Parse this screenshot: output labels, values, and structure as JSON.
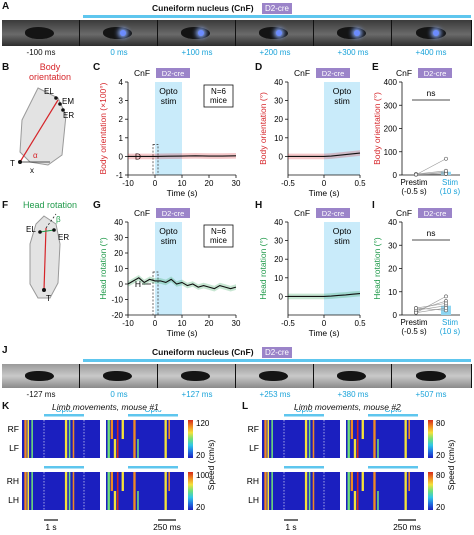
{
  "panels": {
    "A": "A",
    "B": "B",
    "C": "C",
    "D": "D",
    "E": "E",
    "F": "F",
    "G": "G",
    "H": "H",
    "I": "I",
    "J": "J",
    "K": "K",
    "L": "L"
  },
  "header": {
    "region": "Cuneiform nucleus (CnF)",
    "badge": "D2-cre"
  },
  "strip_a": {
    "labels": [
      "-100 ms",
      "0 ms",
      "+100 ms",
      "+200 ms",
      "+300 ms",
      "+400 ms"
    ]
  },
  "strip_j": {
    "labels": [
      "-127 ms",
      "0 ms",
      "+127 ms",
      "+253 ms",
      "+380 ms",
      "+507 ms"
    ]
  },
  "schematic_b": {
    "title": "Body orientation",
    "labels": [
      "EL",
      "EM",
      "ER",
      "T",
      "α",
      "x"
    ]
  },
  "schematic_f": {
    "title": "Head rotation",
    "labels": [
      "EL",
      "ER",
      "T",
      "β"
    ]
  },
  "common": {
    "cnf": "CnF",
    "badge": "D2-cre",
    "opto": "Opto",
    "stim": "stim",
    "n_mice_1": "N=6",
    "n_mice_2": "mice",
    "time": "Time (s)",
    "ns": "ns",
    "prestim": "Prestim",
    "prestim_sub": "(-0.5 s)",
    "stim_label": "Stim",
    "stim_sub": "(10 s)"
  },
  "chart_data": [
    {
      "id": "C",
      "type": "line",
      "ylabel": "Body orientation (×100°)",
      "xlabel": "Time (s)",
      "xlim": [
        -10,
        30
      ],
      "ylim": [
        -1,
        4
      ],
      "xticks": [
        -10,
        0,
        10,
        20,
        30
      ],
      "yticks": [
        -1,
        0,
        1,
        2,
        3,
        4
      ],
      "opto_window": [
        0,
        10
      ],
      "x": [
        -10,
        -5,
        0,
        5,
        10,
        15,
        20,
        25,
        30
      ],
      "y": [
        0,
        0,
        0,
        0.01,
        0.02,
        0.03,
        0.02,
        0.02,
        0.03
      ],
      "annotation": "D"
    },
    {
      "id": "D",
      "type": "line",
      "ylabel": "Body orientation (°)",
      "xlabel": "Time (s)",
      "xlim": [
        -0.5,
        0.5
      ],
      "ylim": [
        -10,
        40
      ],
      "xticks": [
        -0.5,
        0,
        0.5
      ],
      "yticks": [
        0,
        10,
        20,
        30,
        40
      ],
      "opto_window": [
        0,
        0.5
      ],
      "x": [
        -0.5,
        -0.25,
        0,
        0.1,
        0.2,
        0.3,
        0.4,
        0.5
      ],
      "y": [
        0,
        0,
        0,
        0.2,
        0.6,
        1.0,
        1.4,
        1.8
      ]
    },
    {
      "id": "E",
      "type": "scatter",
      "ylabel": "Body orientation (°)",
      "ylim": [
        0,
        400
      ],
      "yticks": [
        0,
        100,
        200,
        300,
        400
      ],
      "categories": [
        "Prestim (-0.5 s)",
        "Stim (10 s)"
      ],
      "series": [
        {
          "values": [
            3,
            14
          ]
        }
      ],
      "points": [
        [
          2,
          5
        ],
        [
          1,
          70
        ],
        [
          3,
          4
        ],
        [
          2,
          12
        ],
        [
          4,
          18
        ],
        [
          2,
          5
        ]
      ]
    },
    {
      "id": "G",
      "type": "line",
      "ylabel": "Head rotation (°)",
      "xlabel": "Time (s)",
      "xlim": [
        -10,
        30
      ],
      "ylim": [
        -20,
        40
      ],
      "xticks": [
        -10,
        0,
        10,
        20,
        30
      ],
      "yticks": [
        -20,
        -10,
        0,
        10,
        20,
        30,
        40
      ],
      "opto_window": [
        0,
        10
      ],
      "x": [
        -10,
        -8,
        -6,
        -4,
        -2,
        0,
        2,
        4,
        6,
        8,
        10,
        12,
        14,
        16,
        18,
        20,
        22,
        24,
        26,
        28,
        30
      ],
      "y": [
        0,
        2,
        4,
        1,
        3,
        2,
        2,
        1,
        3,
        0,
        1,
        -1,
        0,
        -2,
        -1,
        -2,
        -3,
        -1,
        -2,
        -3,
        -2
      ],
      "annotation": "H"
    },
    {
      "id": "H",
      "type": "line",
      "ylabel": "Head rotation (°)",
      "xlabel": "Time (s)",
      "xlim": [
        -0.5,
        0.5
      ],
      "ylim": [
        -10,
        40
      ],
      "xticks": [
        -0.5,
        0,
        0.5
      ],
      "yticks": [
        0,
        10,
        20,
        30,
        40
      ],
      "opto_window": [
        0,
        0.5
      ],
      "x": [
        -0.5,
        -0.25,
        0,
        0.1,
        0.2,
        0.3,
        0.4,
        0.5
      ],
      "y": [
        0,
        0,
        0,
        0.2,
        0.5,
        0.8,
        1.2,
        1.5
      ]
    },
    {
      "id": "I",
      "type": "scatter",
      "ylabel": "Head rotation (°)",
      "ylim": [
        0,
        40
      ],
      "yticks": [
        0,
        10,
        20,
        30,
        40
      ],
      "categories": [
        "Prestim (-0.5 s)",
        "Stim (10 s)"
      ],
      "series": [
        {
          "values": [
            2,
            4
          ]
        }
      ],
      "points": [
        [
          1,
          8
        ],
        [
          2,
          4
        ],
        [
          3,
          2
        ],
        [
          2,
          6
        ],
        [
          1,
          3
        ],
        [
          3,
          5
        ]
      ]
    }
  ],
  "heatmaps": {
    "K": {
      "title": "Limb movements, mouse #1",
      "rows_top": [
        "RF",
        "LF"
      ],
      "rows_bot": [
        "RH",
        "LH"
      ],
      "scale_left": "1 s",
      "scale_right": "250 ms",
      "cbar_top": {
        "max": "120",
        "min": "20"
      },
      "cbar_bot": {
        "max": "100",
        "min": "20"
      }
    },
    "L": {
      "title": "Limb movements, mouse #2",
      "rows_top": [
        "RF",
        "LF"
      ],
      "rows_bot": [
        "RH",
        "LH"
      ],
      "scale_left": "1 s",
      "scale_right": "250 ms",
      "cbar_top": {
        "max": "80",
        "min": "20"
      },
      "cbar_bot": {
        "max": "80",
        "min": "20"
      }
    },
    "speed_label": "Speed (cm/s)"
  },
  "colors": {
    "opto": "#c9ebfa",
    "opto_bar": "#5ec6ee",
    "red": "#d6252a",
    "green": "#1f9a4a",
    "cyan": "#1aa3d9",
    "badge": "#9b84c9",
    "heat_bg": "#1b1fbf"
  }
}
